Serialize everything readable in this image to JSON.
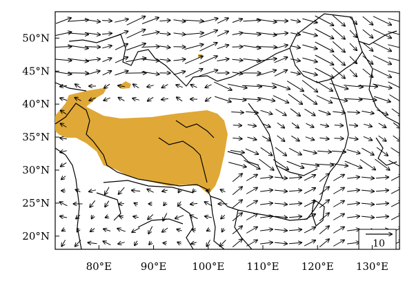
{
  "map": {
    "x_ticks": [
      {
        "lon": 80,
        "label": "80°E"
      },
      {
        "lon": 90,
        "label": "90°E"
      },
      {
        "lon": 100,
        "label": "100°E"
      },
      {
        "lon": 110,
        "label": "110°E"
      },
      {
        "lon": 120,
        "label": "120°E"
      },
      {
        "lon": 130,
        "label": "130°E"
      }
    ],
    "y_ticks": [
      {
        "lat": 20,
        "label": "20°N"
      },
      {
        "lat": 25,
        "label": "25°N"
      },
      {
        "lat": 30,
        "label": "30°N"
      },
      {
        "lat": 35,
        "label": "35°N"
      },
      {
        "lat": 40,
        "label": "40°N"
      },
      {
        "lat": 45,
        "label": "45°N"
      },
      {
        "lat": 50,
        "label": "50°N"
      }
    ],
    "lon_range": [
      72,
      135
    ],
    "lat_range": [
      18,
      54
    ],
    "reference_vector": {
      "label": "10"
    },
    "plateau_color": "#E0A836",
    "vector_color": "#000000"
  }
}
